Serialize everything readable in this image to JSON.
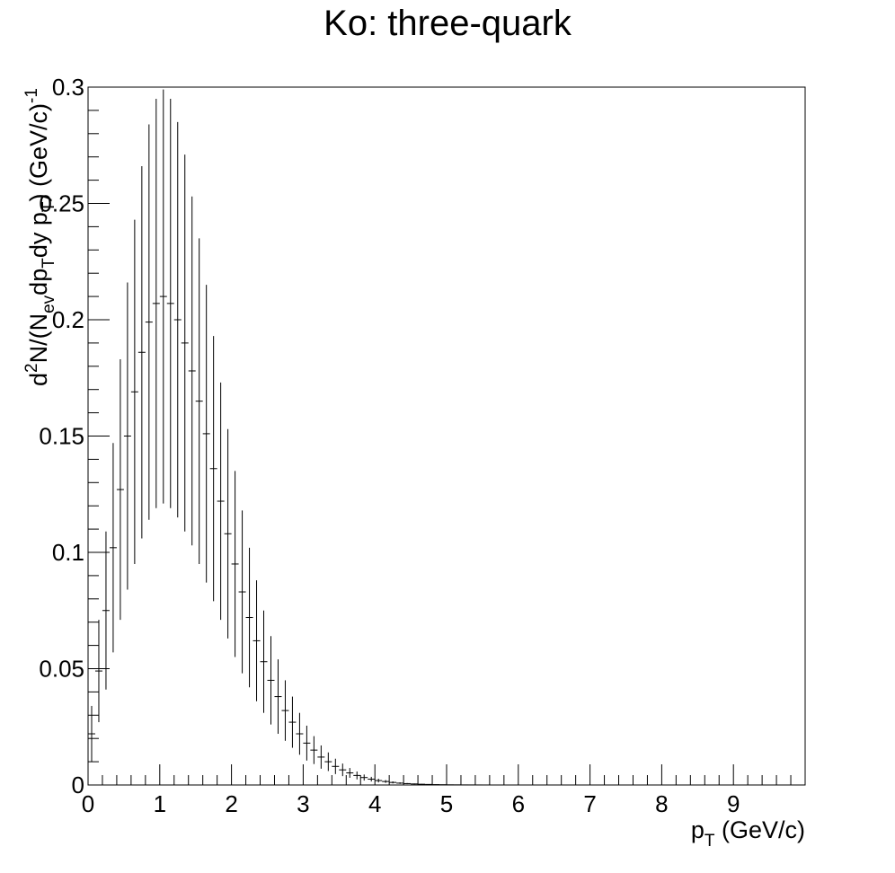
{
  "chart_data": {
    "type": "scatter",
    "title": "Ko: three-quark",
    "xlabel": {
      "base": "p",
      "sub": "T",
      "rest": " (GeV/c)"
    },
    "ylabel": {
      "p1": "d",
      "sup1": "2",
      "p2": "N/(N",
      "sub1": "ev",
      "p3": "dp",
      "sub2": "T",
      "p4": "dy p",
      "sub3": "T",
      "p5": ") (GeV/c)",
      "sup2": "-1"
    },
    "xlim": [
      0,
      10
    ],
    "ylim": [
      0,
      0.3
    ],
    "x_ticks": [
      "0",
      "1",
      "2",
      "3",
      "4",
      "5",
      "6",
      "7",
      "8",
      "9"
    ],
    "y_ticks": [
      "0",
      "0.05",
      "0.1",
      "0.15",
      "0.2",
      "0.25",
      "0.3"
    ],
    "y_tick_values": [
      0,
      0.05,
      0.1,
      0.15,
      0.2,
      0.25,
      0.3
    ],
    "grid": false,
    "legend": "none",
    "bin_width": 0.1,
    "series": [
      {
        "x": [
          0.05,
          0.15,
          0.25,
          0.35,
          0.45,
          0.55,
          0.65,
          0.75,
          0.85,
          0.95,
          1.05,
          1.15,
          1.25,
          1.35,
          1.45,
          1.55,
          1.65,
          1.75,
          1.85,
          1.95,
          2.05,
          2.15,
          2.25,
          2.35,
          2.45,
          2.55,
          2.65,
          2.75,
          2.85,
          2.95,
          3.05,
          3.15,
          3.25,
          3.35,
          3.45,
          3.55,
          3.65,
          3.75,
          3.85,
          3.95,
          4.05,
          4.15,
          4.25,
          4.35,
          4.45,
          4.55,
          4.65,
          4.75,
          4.85,
          4.95,
          5.05,
          5.15,
          5.25,
          5.35,
          5.45,
          5.55
        ],
        "y": [
          0.022,
          0.049,
          0.075,
          0.102,
          0.127,
          0.15,
          0.169,
          0.186,
          0.199,
          0.207,
          0.21,
          0.207,
          0.2,
          0.19,
          0.178,
          0.165,
          0.151,
          0.136,
          0.122,
          0.108,
          0.095,
          0.083,
          0.072,
          0.062,
          0.053,
          0.045,
          0.038,
          0.032,
          0.027,
          0.022,
          0.018,
          0.015,
          0.012,
          0.01,
          0.008,
          0.0065,
          0.0052,
          0.0041,
          0.0032,
          0.0025,
          0.0019,
          0.0015,
          0.0011,
          0.0008,
          0.0006,
          0.00045,
          0.00033,
          0.00024,
          0.00017,
          0.00012,
          8e-05,
          6e-05,
          4e-05,
          3e-05,
          2e-05,
          1e-05
        ],
        "y_err": [
          0.012,
          0.022,
          0.034,
          0.045,
          0.056,
          0.066,
          0.074,
          0.08,
          0.085,
          0.088,
          0.089,
          0.088,
          0.085,
          0.081,
          0.075,
          0.07,
          0.064,
          0.057,
          0.051,
          0.045,
          0.04,
          0.035,
          0.03,
          0.026,
          0.022,
          0.019,
          0.016,
          0.013,
          0.011,
          0.009,
          0.0075,
          0.006,
          0.005,
          0.004,
          0.0033,
          0.0027,
          0.0021,
          0.0017,
          0.0013,
          0.001,
          0.0008,
          0.0006,
          0.00045,
          0.00033,
          0.00024,
          0.00018,
          0.00013,
          0.0001,
          7e-05,
          5e-05,
          3e-05,
          2e-05,
          2e-05,
          1e-05,
          1e-05,
          1e-05
        ]
      }
    ]
  }
}
